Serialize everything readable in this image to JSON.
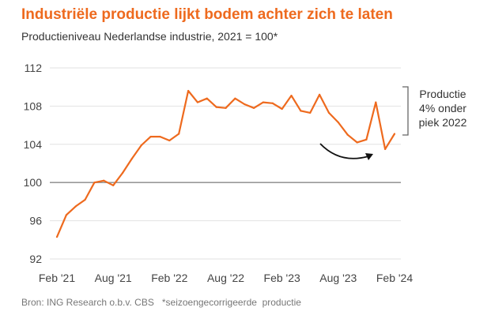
{
  "header": {
    "title": "Industriële productie lijkt bodem achter zich te laten",
    "subtitle": "Productieniveau Nederlandse industrie, 2021 = 100*"
  },
  "footer": {
    "source": "Bron: ING Research o.b.v. CBS   *seizoengecorrigeerde  productie"
  },
  "colors": {
    "line": "#ee6a1e",
    "grid": "#e2e2e2",
    "baseline": "#999999"
  },
  "chart_data": {
    "type": "line",
    "title": "Industriële productie lijkt bodem achter zich te laten",
    "subtitle": "Productieniveau Nederlandse industrie, 2021 = 100*",
    "ylim": [
      92,
      112
    ],
    "yticks": [
      92,
      96,
      100,
      104,
      108,
      112
    ],
    "reference_line": 100,
    "grid": "horizontal",
    "x_tick_labels": [
      "Feb '21",
      "Aug '21",
      "Feb '22",
      "Aug '22",
      "Feb '23",
      "Aug '23",
      "Feb '24"
    ],
    "x": [
      "2021-02",
      "2021-03",
      "2021-04",
      "2021-05",
      "2021-06",
      "2021-07",
      "2021-08",
      "2021-09",
      "2021-10",
      "2021-11",
      "2021-12",
      "2022-01",
      "2022-02",
      "2022-03",
      "2022-04",
      "2022-05",
      "2022-06",
      "2022-07",
      "2022-08",
      "2022-09",
      "2022-10",
      "2022-11",
      "2022-12",
      "2023-01",
      "2023-02",
      "2023-03",
      "2023-04",
      "2023-05",
      "2023-06",
      "2023-07",
      "2023-08",
      "2023-09",
      "2023-10",
      "2023-11",
      "2023-12",
      "2024-01",
      "2024-02"
    ],
    "series": [
      {
        "values": [
          94.3,
          96.6,
          97.5,
          98.2,
          100.0,
          100.2,
          99.7,
          101.0,
          102.5,
          103.9,
          104.8,
          104.8,
          104.4,
          105.1,
          109.6,
          108.4,
          108.8,
          107.9,
          107.8,
          108.8,
          108.2,
          107.8,
          108.4,
          108.3,
          107.7,
          109.1,
          107.5,
          107.3,
          109.2,
          107.3,
          106.3,
          105.0,
          104.2,
          104.5,
          108.4,
          103.5,
          105.1
        ]
      }
    ],
    "annotations": {
      "bracket_text": [
        "Productie",
        "4% onder",
        "piek 2022"
      ],
      "arrow": "curved arrow indicating bottoming out"
    }
  }
}
